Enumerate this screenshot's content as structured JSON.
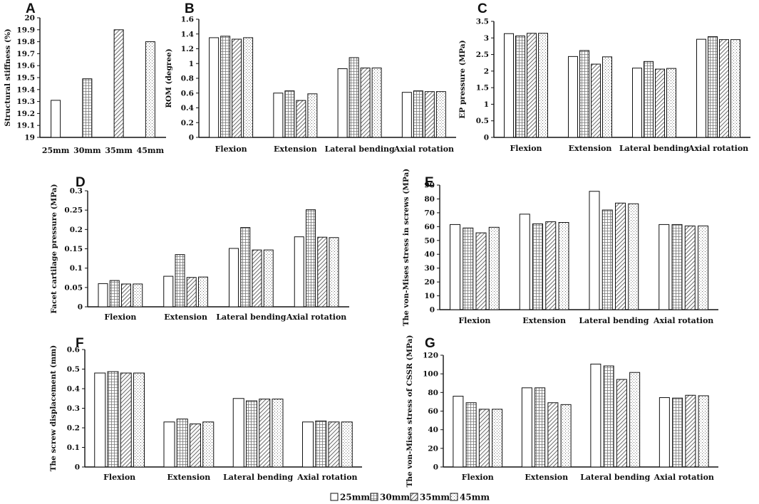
{
  "legend": [
    "25mm",
    "30mm",
    "35mm",
    "45mm"
  ],
  "chart_data": [
    {
      "panel": "A",
      "type": "bar",
      "categories": [
        "25mm",
        "30mm",
        "35mm",
        "45mm"
      ],
      "values": [
        19.31,
        19.49,
        19.9,
        19.8
      ],
      "ylabel": "Structural stiffness (%)",
      "ylim": [
        19,
        20
      ],
      "yticks": [
        "19",
        "19.1",
        "19.2",
        "19.3",
        "19.4",
        "19.5",
        "19.6",
        "19.7",
        "19.8",
        "19.9",
        "20"
      ]
    },
    {
      "panel": "B",
      "type": "bar",
      "categories": [
        "Flexion",
        "Extension",
        "Lateral bending",
        "Axial  rotation"
      ],
      "series": [
        {
          "name": "25mm",
          "values": [
            1.35,
            0.6,
            0.93,
            0.61
          ]
        },
        {
          "name": "30mm",
          "values": [
            1.37,
            0.63,
            1.08,
            0.63
          ]
        },
        {
          "name": "35mm",
          "values": [
            1.33,
            0.5,
            0.94,
            0.62
          ]
        },
        {
          "name": "45mm",
          "values": [
            1.35,
            0.59,
            0.94,
            0.62
          ]
        }
      ],
      "ylabel": "ROM (degree)",
      "ylim": [
        0,
        1.6
      ],
      "yticks": [
        "0",
        "0.2",
        "0.4",
        "0.6",
        "0.8",
        "1",
        "1.2",
        "1.4",
        "1.6"
      ]
    },
    {
      "panel": "C",
      "type": "bar",
      "categories": [
        "Flexion",
        "Extension",
        "Lateral bending",
        "Axial  rotation"
      ],
      "series": [
        {
          "name": "25mm",
          "values": [
            3.13,
            2.44,
            2.09,
            2.96
          ]
        },
        {
          "name": "30mm",
          "values": [
            3.06,
            2.62,
            2.29,
            3.04
          ]
        },
        {
          "name": "35mm",
          "values": [
            3.14,
            2.21,
            2.06,
            2.95
          ]
        },
        {
          "name": "45mm",
          "values": [
            3.14,
            2.43,
            2.08,
            2.95
          ]
        }
      ],
      "ylabel": "EP pressure (MPa)",
      "ylim": [
        0,
        3.5
      ],
      "yticks": [
        "0",
        "0.5",
        "1",
        "1.5",
        "2",
        "2.5",
        "3",
        "3.5"
      ]
    },
    {
      "panel": "D",
      "type": "bar",
      "categories": [
        "Flexion",
        "Extension",
        "Lateral bending",
        "Axial  rotation"
      ],
      "series": [
        {
          "name": "25mm",
          "values": [
            0.06,
            0.079,
            0.151,
            0.181
          ]
        },
        {
          "name": "30mm",
          "values": [
            0.068,
            0.135,
            0.205,
            0.251
          ]
        },
        {
          "name": "35mm",
          "values": [
            0.059,
            0.076,
            0.147,
            0.18
          ]
        },
        {
          "name": "45mm",
          "values": [
            0.059,
            0.077,
            0.147,
            0.179
          ]
        }
      ],
      "ylabel": "Facet cartilage pressure (MPa)",
      "ylim": [
        0,
        0.3
      ],
      "yticks": [
        "0",
        "0.05",
        "0.1",
        "0.15",
        "0.2",
        "0.25",
        "0.3"
      ]
    },
    {
      "panel": "E",
      "type": "bar",
      "categories": [
        "Flexion",
        "Extension",
        "Lateral bending",
        "Axial  rotation"
      ],
      "series": [
        {
          "name": "25mm",
          "values": [
            61.5,
            69,
            85.5,
            61.5
          ]
        },
        {
          "name": "30mm",
          "values": [
            59,
            62,
            72,
            61.5
          ]
        },
        {
          "name": "35mm",
          "values": [
            55.5,
            63.5,
            77,
            60.5
          ]
        },
        {
          "name": "45mm",
          "values": [
            59.5,
            63,
            76.5,
            60.5
          ]
        }
      ],
      "ylabel": "The von-Mises stress in screws (MPa)",
      "ylim": [
        0,
        90
      ],
      "yticks": [
        "0",
        "10",
        "20",
        "30",
        "40",
        "50",
        "60",
        "70",
        "80",
        "90"
      ]
    },
    {
      "panel": "F",
      "type": "bar",
      "categories": [
        "Flexion",
        "Extension",
        "Lateral bending",
        "Axial  rotation"
      ],
      "series": [
        {
          "name": "25mm",
          "values": [
            0.48,
            0.23,
            0.35,
            0.23
          ]
        },
        {
          "name": "30mm",
          "values": [
            0.487,
            0.245,
            0.338,
            0.235
          ]
        },
        {
          "name": "35mm",
          "values": [
            0.48,
            0.22,
            0.347,
            0.23
          ]
        },
        {
          "name": "45mm",
          "values": [
            0.48,
            0.23,
            0.347,
            0.23
          ]
        }
      ],
      "ylabel": "The screw displacement (mm)",
      "ylim": [
        0,
        0.6
      ],
      "yticks": [
        "0",
        "0.1",
        "0.2",
        "0.3",
        "0.4",
        "0.5",
        "0.6"
      ]
    },
    {
      "panel": "G",
      "type": "bar",
      "categories": [
        "Flexion",
        "Extension",
        "Lateral bending",
        "Axial  rotation"
      ],
      "series": [
        {
          "name": "25mm",
          "values": [
            76,
            85,
            110.5,
            74.5
          ]
        },
        {
          "name": "30mm",
          "values": [
            69,
            85,
            108.5,
            74
          ]
        },
        {
          "name": "35mm",
          "values": [
            62,
            69,
            94,
            77
          ]
        },
        {
          "name": "45mm",
          "values": [
            62,
            67,
            101.5,
            76.5
          ]
        }
      ],
      "ylabel": "The von-Mises stress of CSSR (MPa)",
      "ylim": [
        0,
        120
      ],
      "yticks": [
        "0",
        "20",
        "40",
        "60",
        "80",
        "100",
        "120"
      ]
    }
  ]
}
